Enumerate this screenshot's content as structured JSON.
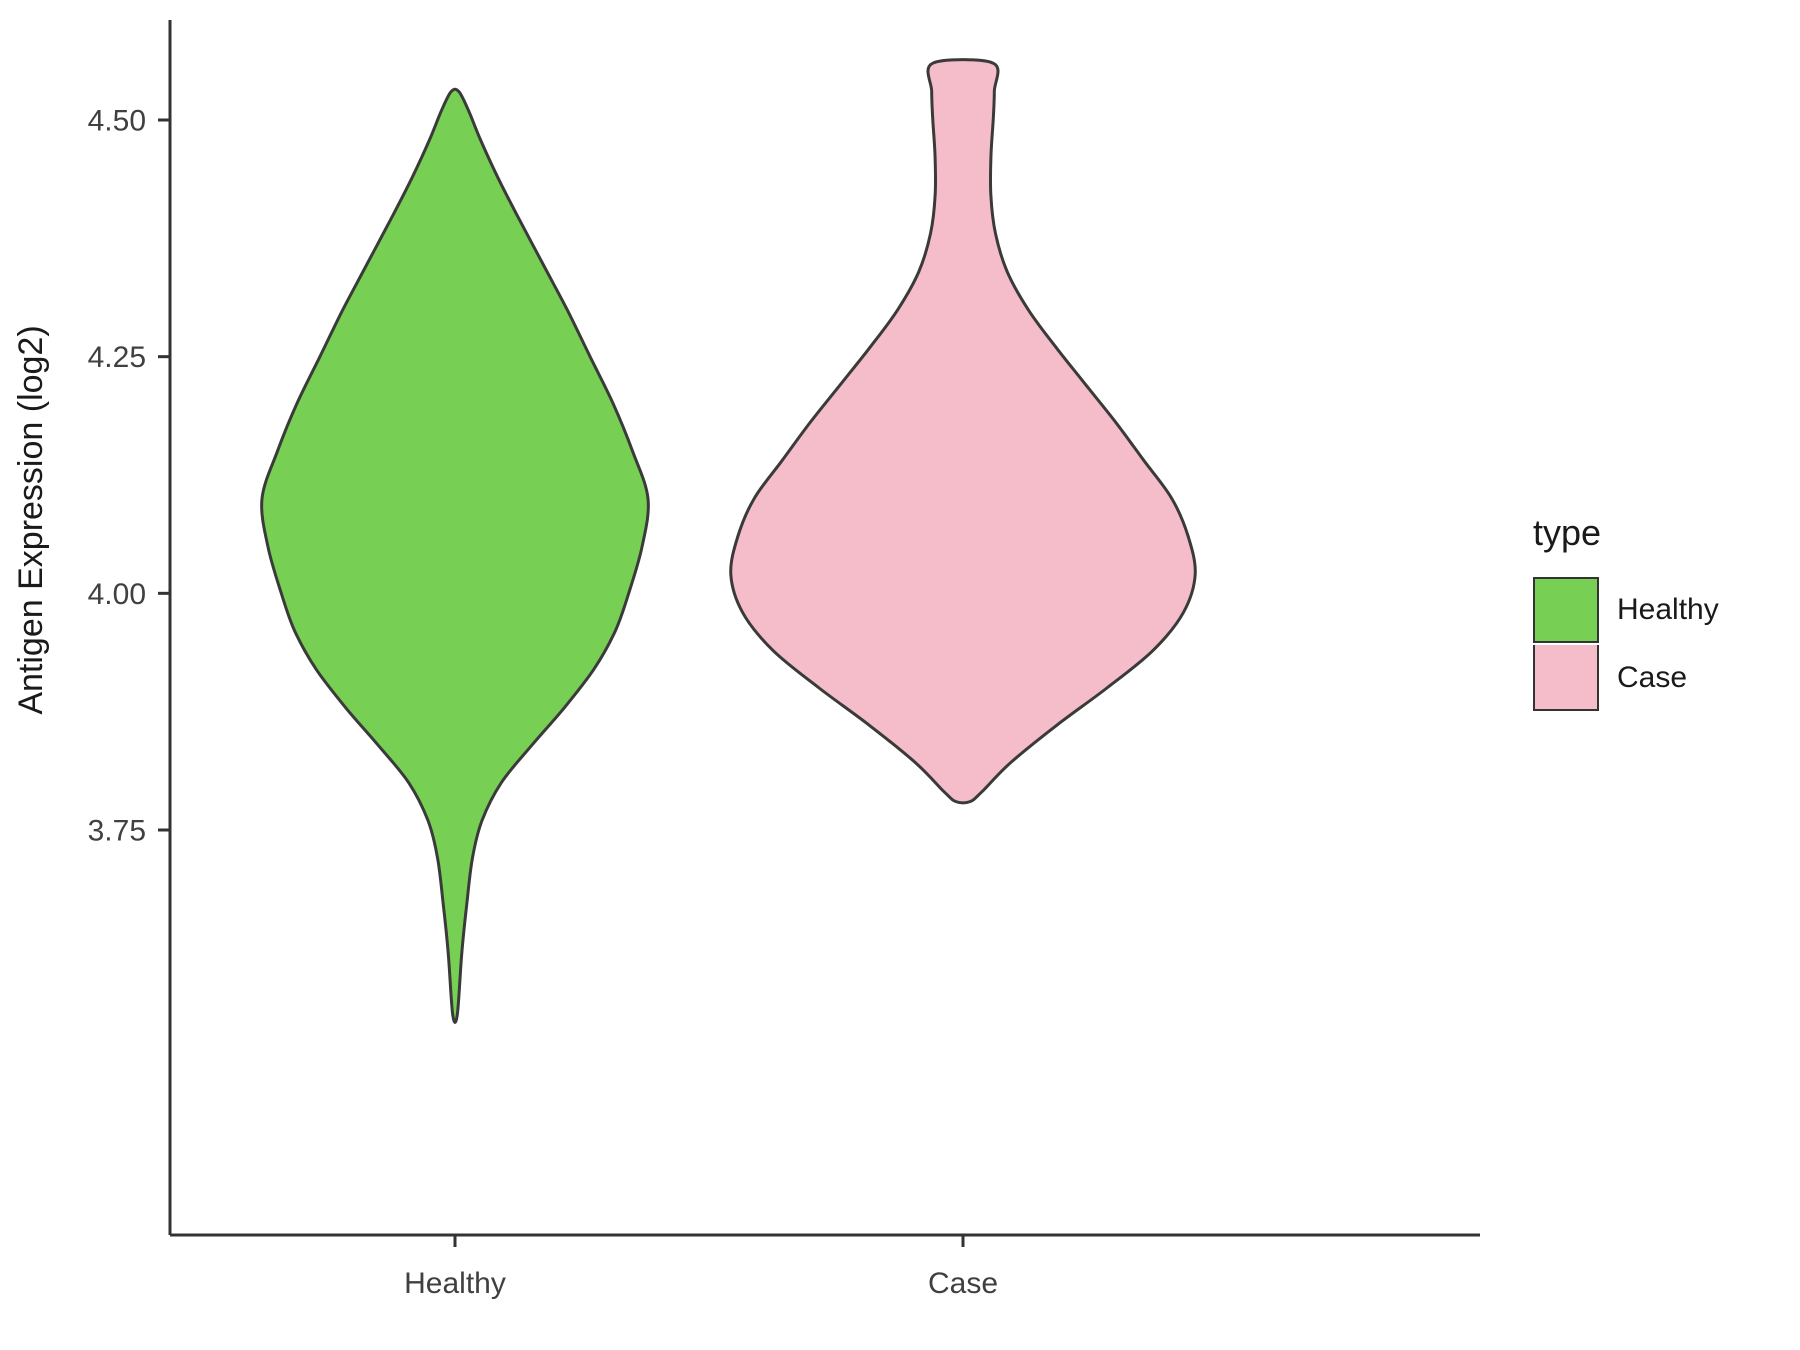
{
  "chart_data": {
    "type": "violin",
    "title": "",
    "xlabel": "",
    "ylabel": "Antigen Expression (log2)",
    "categories": [
      "Healthy",
      "Case"
    ],
    "y_ticks": [
      {
        "value": 3.75,
        "label": "3.75"
      },
      {
        "value": 4.0,
        "label": "4.00"
      },
      {
        "value": 4.25,
        "label": "4.25"
      },
      {
        "value": 4.5,
        "label": "4.50"
      }
    ],
    "ylim": [
      3.45,
      4.62
    ],
    "grid": "off",
    "legend": {
      "position": "right",
      "title": "type",
      "entries": [
        {
          "label": "Healthy",
          "color": "#77D053"
        },
        {
          "label": "Case",
          "color": "#F5BDC9"
        }
      ]
    },
    "stroke_color": "#3A3A3A",
    "axis_color": "#333333",
    "text_color": "#404040",
    "violins": [
      {
        "name": "Healthy",
        "fill": "#77D053",
        "max_halfwidth_frac": 0.38,
        "range": [
          3.555,
          4.53
        ],
        "profile": [
          [
            4.53,
            0.02
          ],
          [
            4.51,
            0.07
          ],
          [
            4.48,
            0.13
          ],
          [
            4.44,
            0.22
          ],
          [
            4.4,
            0.32
          ],
          [
            4.35,
            0.45
          ],
          [
            4.3,
            0.58
          ],
          [
            4.25,
            0.7
          ],
          [
            4.2,
            0.82
          ],
          [
            4.15,
            0.92
          ],
          [
            4.1,
            1.0
          ],
          [
            4.05,
            0.97
          ],
          [
            4.0,
            0.9
          ],
          [
            3.96,
            0.83
          ],
          [
            3.92,
            0.72
          ],
          [
            3.88,
            0.57
          ],
          [
            3.84,
            0.4
          ],
          [
            3.8,
            0.24
          ],
          [
            3.76,
            0.14
          ],
          [
            3.72,
            0.09
          ],
          [
            3.67,
            0.06
          ],
          [
            3.62,
            0.035
          ],
          [
            3.555,
            0.012
          ]
        ]
      },
      {
        "name": "Case",
        "fill": "#F5BDC9",
        "max_halfwidth_frac": 0.457,
        "range": [
          3.78,
          4.56
        ],
        "profile": [
          [
            4.56,
            0.13
          ],
          [
            4.53,
            0.135
          ],
          [
            4.5,
            0.13
          ],
          [
            4.46,
            0.12
          ],
          [
            4.42,
            0.12
          ],
          [
            4.38,
            0.14
          ],
          [
            4.34,
            0.19
          ],
          [
            4.3,
            0.28
          ],
          [
            4.26,
            0.4
          ],
          [
            4.22,
            0.53
          ],
          [
            4.18,
            0.66
          ],
          [
            4.14,
            0.78
          ],
          [
            4.1,
            0.9
          ],
          [
            4.06,
            0.97
          ],
          [
            4.02,
            1.0
          ],
          [
            3.98,
            0.95
          ],
          [
            3.94,
            0.82
          ],
          [
            3.9,
            0.62
          ],
          [
            3.86,
            0.4
          ],
          [
            3.82,
            0.2
          ],
          [
            3.79,
            0.08
          ],
          [
            3.78,
            0.03
          ]
        ]
      }
    ]
  }
}
